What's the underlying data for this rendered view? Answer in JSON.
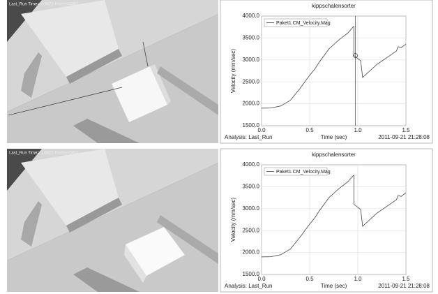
{
  "viewports": [
    {
      "label": "Last_Run   Time= 0.9822   Frame=0381"
    },
    {
      "label": "Last_Run   Time= 1.0022   Frame=0402"
    }
  ],
  "chart_data": [
    {
      "type": "line",
      "title": "kippschalensorter",
      "x_label": "Time (sec)",
      "y_label": "Velocity (mm/sec)",
      "footer_left": "Analysis:  Last_Run",
      "footer_right": "2011-09-21 21:28:08",
      "x": [
        0,
        0.1,
        0.2,
        0.3,
        0.4,
        0.5,
        0.55,
        0.6,
        0.7,
        0.8,
        0.9,
        0.95,
        0.96,
        0.96,
        1.03,
        1.05,
        1.2,
        1.4,
        1.42,
        1.45,
        1.5
      ],
      "series": [
        {
          "name": "Paket1.CM_Velocity.Mag",
          "color": "#555555",
          "values": [
            1900,
            1905,
            1950,
            2080,
            2350,
            2650,
            2780,
            2950,
            3250,
            3450,
            3620,
            3750,
            3760,
            3100,
            2980,
            2600,
            2900,
            3200,
            3300,
            3280,
            3360
          ]
        }
      ],
      "cursor": {
        "x": 0.975,
        "y": 3100
      },
      "xlim": [
        0,
        1.5
      ],
      "xticks": [
        {
          "value": 0,
          "label": "0.0"
        },
        {
          "value": 0.5,
          "label": "0.5"
        },
        {
          "value": 1,
          "label": "1.0"
        },
        {
          "value": 1.5,
          "label": "1.5"
        }
      ],
      "ylim": [
        1500,
        4000
      ],
      "yticks": [
        {
          "value": 1500,
          "label": "1500.0"
        },
        {
          "value": 2000,
          "label": "2000.0"
        },
        {
          "value": 2500,
          "label": "2500.0"
        },
        {
          "value": 3000,
          "label": "3000.0"
        },
        {
          "value": 3500,
          "label": "3500.0"
        },
        {
          "value": 4000,
          "label": "4000.0"
        }
      ],
      "grid": true,
      "legend": "upper-left"
    },
    {
      "type": "line",
      "title": "kippschalensorter",
      "x_label": "Time (sec)",
      "y_label": "Velocity (mm/sec)",
      "footer_left": "Analysis:  Last_Run",
      "footer_right": "2011-09-21 21:28:08",
      "x": [
        0,
        0.1,
        0.2,
        0.3,
        0.4,
        0.5,
        0.55,
        0.6,
        0.7,
        0.8,
        0.9,
        0.95,
        0.96,
        0.96,
        1.03,
        1.05,
        1.2,
        1.4,
        1.42,
        1.45,
        1.5
      ],
      "series": [
        {
          "name": "Paket1.CM_Velocity.Mag",
          "color": "#555555",
          "values": [
            1900,
            1905,
            1950,
            2080,
            2350,
            2650,
            2780,
            2950,
            3250,
            3450,
            3620,
            3750,
            3760,
            3100,
            2980,
            2600,
            2900,
            3200,
            3300,
            3280,
            3360
          ]
        }
      ],
      "xlim": [
        0,
        1.5
      ],
      "xticks": [
        {
          "value": 0,
          "label": "0.0"
        },
        {
          "value": 0.5,
          "label": "0.5"
        },
        {
          "value": 1,
          "label": "1.0"
        },
        {
          "value": 1.5,
          "label": "1.5"
        }
      ],
      "ylim": [
        1500,
        4000
      ],
      "yticks": [
        {
          "value": 1500,
          "label": "1500.0"
        },
        {
          "value": 2000,
          "label": "2000.0"
        },
        {
          "value": 2500,
          "label": "2500.0"
        },
        {
          "value": 3000,
          "label": "3000.0"
        },
        {
          "value": 3500,
          "label": "3500.0"
        },
        {
          "value": 4000,
          "label": "4000.0"
        }
      ],
      "grid": true,
      "legend": "upper-left"
    }
  ]
}
